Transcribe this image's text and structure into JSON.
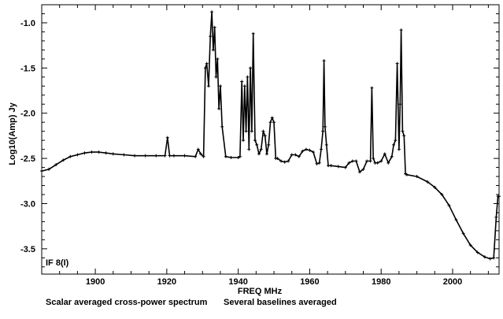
{
  "chart_data": {
    "type": "line",
    "title": "",
    "xlabel": "FREQ  MHz",
    "ylabel": "Log10(Amp) Jy",
    "xlim": [
      1885,
      2013
    ],
    "ylim": [
      -3.78,
      -0.8
    ],
    "xticks": [
      1900,
      1920,
      1940,
      1960,
      1980,
      2000
    ],
    "xtick_labels": [
      "1900",
      "1920",
      "1940",
      "1960",
      "1980",
      "2000"
    ],
    "yticks": [
      -1.0,
      -1.5,
      -2.0,
      -2.5,
      -3.0,
      -3.5
    ],
    "ytick_labels": [
      "-1.0",
      "-1.5",
      "-2.0",
      "-2.5",
      "-3.0",
      "-3.5"
    ],
    "grid": false,
    "series": [
      {
        "name": "",
        "color": "#000000",
        "x": [
          1885,
          1887,
          1889,
          1891,
          1893,
          1895,
          1897,
          1899,
          1901,
          1903,
          1905,
          1908,
          1911,
          1914,
          1917,
          1919.5,
          1920.2,
          1920.8,
          1922,
          1925,
          1928,
          1928.8,
          1929.5,
          1930.3,
          1930.8,
          1931.2,
          1931.7,
          1932.2,
          1932.6,
          1933,
          1933.4,
          1933.8,
          1934.2,
          1934.6,
          1935,
          1935.5,
          1936.5,
          1938,
          1940,
          1940.5,
          1941,
          1941.4,
          1941.8,
          1942.2,
          1942.6,
          1943,
          1943.4,
          1943.8,
          1944.2,
          1944.7,
          1945.2,
          1945.8,
          1946.4,
          1947,
          1947.5,
          1948,
          1948.5,
          1949,
          1949.5,
          1950,
          1950.5,
          1951,
          1952,
          1953,
          1954,
          1955,
          1956,
          1957,
          1958,
          1959,
          1960,
          1961,
          1962,
          1962.7,
          1963.2,
          1963.7,
          1964,
          1964.3,
          1964.7,
          1965.2,
          1966,
          1968,
          1970,
          1971,
          1972,
          1973,
          1974,
          1975,
          1976,
          1977,
          1977.4,
          1977.8,
          1978.3,
          1979,
          1980,
          1981,
          1982,
          1983,
          1983.5,
          1984,
          1984.5,
          1985,
          1985.3,
          1985.6,
          1986,
          1986.4,
          1986.8,
          1987.2,
          1990,
          1993,
          1995,
          1997,
          1999,
          2001,
          2003,
          2005,
          2007,
          2009,
          2010.5,
          2011.5,
          2012.2,
          2012.7,
          2013
        ],
        "y": [
          -2.64,
          -2.62,
          -2.57,
          -2.52,
          -2.48,
          -2.46,
          -2.44,
          -2.43,
          -2.43,
          -2.44,
          -2.45,
          -2.46,
          -2.47,
          -2.47,
          -2.47,
          -2.47,
          -2.27,
          -2.47,
          -2.47,
          -2.47,
          -2.48,
          -2.4,
          -2.45,
          -2.48,
          -1.5,
          -1.45,
          -1.7,
          -1.15,
          -0.88,
          -1.3,
          -1.05,
          -1.6,
          -1.4,
          -1.95,
          -1.7,
          -2.15,
          -2.48,
          -2.49,
          -2.49,
          -2.48,
          -1.65,
          -2.3,
          -1.7,
          -2.2,
          -1.6,
          -2.4,
          -1.5,
          -2.2,
          -1.12,
          -2.3,
          -2.35,
          -2.45,
          -2.4,
          -2.2,
          -2.25,
          -2.45,
          -2.35,
          -2.1,
          -2.05,
          -2.1,
          -2.5,
          -2.5,
          -2.53,
          -2.54,
          -2.53,
          -2.46,
          -2.46,
          -2.48,
          -2.42,
          -2.4,
          -2.41,
          -2.43,
          -2.56,
          -2.55,
          -2.4,
          -2.2,
          -1.42,
          -2.15,
          -2.35,
          -2.58,
          -2.58,
          -2.59,
          -2.6,
          -2.55,
          -2.53,
          -2.53,
          -2.65,
          -2.62,
          -2.53,
          -2.53,
          -1.72,
          -2.5,
          -2.55,
          -2.55,
          -2.53,
          -2.45,
          -2.55,
          -2.48,
          -2.35,
          -2.3,
          -1.45,
          -2.4,
          -1.9,
          -1.08,
          -2.2,
          -2.25,
          -2.67,
          -2.68,
          -2.7,
          -2.76,
          -2.82,
          -2.9,
          -3.02,
          -3.18,
          -3.33,
          -3.46,
          -3.54,
          -3.59,
          -3.61,
          -3.6,
          -3.15,
          -2.92,
          -2.92
        ]
      }
    ]
  },
  "annotations": {
    "panel_label": "IF 8(I)",
    "caption_left": "Scalar averaged cross-power spectrum",
    "caption_right": "Several baselines averaged"
  }
}
